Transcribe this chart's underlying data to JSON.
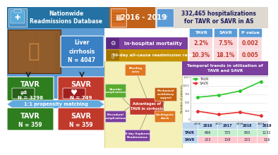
{
  "title_left": "Nationwide\nReadmissions Database",
  "years": "2016 - 2019",
  "hosp_text": "332,465 hospitalizations\nfor TAVR or SAVR in AS",
  "liver_text": "Liver\ncirrhosis\nN = 4047",
  "tavr_n": "N = 3298",
  "savr_n": "N = 749",
  "propensity": "1:1 propensity matching",
  "tavr_matched": "N = 359",
  "savr_matched": "N = 359",
  "mortality_label": "In-hospital mortality",
  "readmission_label": "30-day all-cause readmission rates",
  "tavr_mortality": "2.2%",
  "savr_mortality": "7.5%",
  "pval_mortality": "0.002",
  "tavr_readmission": "10.3%",
  "savr_readmission": "18.1%",
  "pval_readmission": "0.005",
  "trend_title": "Temporal trends in utilization of\nTAVR and SAVR",
  "years_trend": [
    2016,
    2017,
    2018,
    2019
  ],
  "tavr_trend": [
    666,
    725,
    850,
    1132
  ],
  "savr_trend": [
    253,
    158,
    223,
    116
  ],
  "header_blue": "#2471a3",
  "orange_bg": "#c0621a",
  "green_box": "#2e7d1e",
  "red_box": "#c0392b",
  "blue_box": "#3a8fd4",
  "purple_label": "#7b3f9e",
  "yellow_label": "#c89000",
  "purple_trend_bg": "#7b3f9e",
  "light_pink": "#fadadd",
  "table_header_blue": "#5b9bd5",
  "adv_center_red": "#c0392b",
  "adv_orange": "#e07820",
  "adv_purple": "#7b3f9e",
  "adv_green": "#5aaa30",
  "adv_dark_orange": "#c86010"
}
